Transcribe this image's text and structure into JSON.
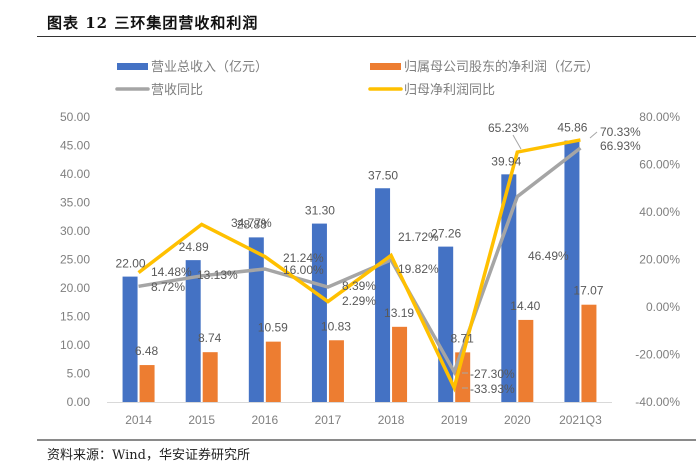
{
  "figure": {
    "title": "图表 12 三环集团营收和利润",
    "source": "资料来源：Wind，华安证券研究所"
  },
  "chart_data": {
    "type": "bar+line",
    "title": "三环集团营收和利润",
    "categories": [
      "2014",
      "2015",
      "2016",
      "2017",
      "2018",
      "2019",
      "2020",
      "2021Q3"
    ],
    "series": [
      {
        "name": "营业总收入（亿元）",
        "type": "bar",
        "axis": "left",
        "color": "#4472C4",
        "values": [
          22.0,
          24.89,
          28.88,
          31.3,
          37.5,
          27.26,
          39.94,
          45.86
        ],
        "labels": [
          "22.00",
          "24.89",
          "28.88",
          "31.30",
          "37.50",
          "27.26",
          "39.94",
          "45.86"
        ]
      },
      {
        "name": "归属母公司股东的净利润（亿元）",
        "type": "bar",
        "axis": "left",
        "color": "#ED7D31",
        "values": [
          6.48,
          8.74,
          10.59,
          10.83,
          13.19,
          8.71,
          14.4,
          17.07
        ],
        "labels": [
          "6.48",
          "8.74",
          "10.59",
          "10.83",
          "13.19",
          "8.71",
          "14.40",
          "17.07"
        ]
      },
      {
        "name": "营收同比",
        "type": "line",
        "axis": "right",
        "color": "#A5A5A5",
        "values": [
          8.72,
          13.13,
          16.0,
          8.39,
          19.82,
          -27.3,
          46.49,
          66.93
        ],
        "labels": [
          "8.72%",
          "13.13%",
          "16.00%",
          "8.39%",
          "19.82%",
          "-27.30%",
          "46.49%",
          "66.93%"
        ]
      },
      {
        "name": "归母净利润同比",
        "type": "line",
        "axis": "right",
        "color": "#FFC000",
        "values": [
          14.48,
          34.77,
          21.24,
          2.29,
          21.72,
          -33.93,
          65.23,
          70.33
        ],
        "labels": [
          "14.48%",
          "34.77%",
          "21.24%",
          "2.29%",
          "21.72%",
          "-33.93%",
          "65.23%",
          "70.33%"
        ]
      }
    ],
    "left_axis": {
      "ylim": [
        0,
        50
      ],
      "ticks": [
        "0.00",
        "5.00",
        "10.00",
        "15.00",
        "20.00",
        "25.00",
        "30.00",
        "35.00",
        "40.00",
        "45.00",
        "50.00"
      ]
    },
    "right_axis": {
      "ylim": [
        -40,
        80
      ],
      "ticks": [
        "-40.00%",
        "-20.00%",
        "0.00%",
        "20.00%",
        "40.00%",
        "60.00%",
        "80.00%"
      ]
    },
    "grid": false,
    "legend": {
      "position": "top",
      "entries": [
        "营业总收入（亿元）",
        "归属母公司股东的净利润（亿元）",
        "营收同比",
        "归母净利润同比"
      ]
    }
  }
}
